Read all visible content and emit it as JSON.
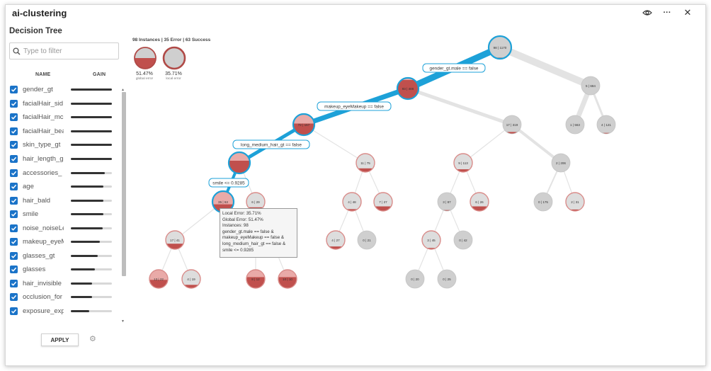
{
  "app": {
    "title": "ai-clustering"
  },
  "header": {
    "icons": [
      "eye-icon",
      "more-icon",
      "close-icon"
    ],
    "more_glyph": "···",
    "close_glyph": "✕"
  },
  "panel": {
    "title": "Decision Tree",
    "filter_placeholder": "Type to filter",
    "col_name": "NAME",
    "col_gain": "GAIN",
    "apply_label": "APPLY",
    "features": [
      {
        "name": "gender_gt",
        "gain": 1.0
      },
      {
        "name": "facialHair_sid",
        "gain": 1.0
      },
      {
        "name": "facialHair_mc",
        "gain": 1.0
      },
      {
        "name": "facialHair_bea",
        "gain": 1.0
      },
      {
        "name": "skin_type_gt",
        "gain": 1.0
      },
      {
        "name": "hair_length_g",
        "gain": 1.0
      },
      {
        "name": "accessories_",
        "gain": 0.82
      },
      {
        "name": "age",
        "gain": 0.8
      },
      {
        "name": "hair_bald",
        "gain": 0.8
      },
      {
        "name": "smile",
        "gain": 0.79
      },
      {
        "name": "noise_noiseLe",
        "gain": 0.78
      },
      {
        "name": "makeup_eyeM",
        "gain": 0.7
      },
      {
        "name": "glasses_gt",
        "gain": 0.65
      },
      {
        "name": "glasses",
        "gain": 0.58
      },
      {
        "name": "hair_invisible",
        "gain": 0.52
      },
      {
        "name": "occlusion_for",
        "gain": 0.52
      },
      {
        "name": "exposure_exp",
        "gain": 0.45
      }
    ]
  },
  "tree": {
    "summary": "98 Instances | 35 Error | 63 Success",
    "legend": [
      {
        "pct": "51.47%",
        "label": "global error"
      },
      {
        "pct": "35.71%",
        "label": "local error"
      }
    ],
    "colors": {
      "path": "#1da1d8",
      "error": "#c0504d",
      "node_gray": "#cfcfcf",
      "node_pink": "#e9aaa8"
    },
    "nodes": [
      {
        "id": "n0",
        "label": "98 | 1170",
        "fill": 0.05,
        "tone": "gray",
        "selected": true
      },
      {
        "id": "n1",
        "label": "93 | 486",
        "fill": 0.9,
        "tone": "pink",
        "selected": true
      },
      {
        "id": "n2",
        "label": "5 | 684",
        "fill": 0.0,
        "tone": "gray"
      },
      {
        "id": "n3",
        "label": "72 | 167",
        "fill": 0.55,
        "tone": "pink",
        "selected": true
      },
      {
        "id": "n4",
        "label": "17 | 319",
        "fill": 0.1,
        "tone": "gray"
      },
      {
        "id": "n5",
        "label": "1 | 563",
        "fill": 0.0,
        "tone": "gray"
      },
      {
        "id": "n6",
        "label": "4 | 121",
        "fill": 0.05,
        "tone": "gray"
      },
      {
        "id": "n7",
        "label": "",
        "fill": 0.6,
        "tone": "pink",
        "selected": true
      },
      {
        "id": "n8",
        "label": "11 | 75",
        "fill": 0.2,
        "tone": "pinklight"
      },
      {
        "id": "n9",
        "label": "9 | 113",
        "fill": 0.15,
        "tone": "pinklight"
      },
      {
        "id": "n10",
        "label": "2 | 206",
        "fill": 0.0,
        "tone": "gray"
      },
      {
        "id": "n11",
        "label": "35 | 63",
        "fill": 0.38,
        "tone": "pink",
        "selected": true
      },
      {
        "id": "n12",
        "label": "6 | 29",
        "fill": 0.2,
        "tone": "pinklight"
      },
      {
        "id": "n13",
        "label": "4 | 48",
        "fill": 0.1,
        "tone": "pinklight"
      },
      {
        "id": "n14",
        "label": "7 | 27",
        "fill": 0.25,
        "tone": "pinklight"
      },
      {
        "id": "n15",
        "label": "3 | 87",
        "fill": 0.05,
        "tone": "gray"
      },
      {
        "id": "n16",
        "label": "6 | 26",
        "fill": 0.25,
        "tone": "pinklight"
      },
      {
        "id": "n17",
        "label": "0 | 175",
        "fill": 0.0,
        "tone": "gray"
      },
      {
        "id": "n18",
        "label": "2 | 31",
        "fill": 0.08,
        "tone": "pinklight"
      },
      {
        "id": "n19",
        "label": "17 | 41",
        "fill": 0.3,
        "tone": "pinklight"
      },
      {
        "id": "n20",
        "label": "4 | 27",
        "fill": 0.15,
        "tone": "pinklight"
      },
      {
        "id": "n21",
        "label": "0 | 21",
        "fill": 0.0,
        "tone": "gray"
      },
      {
        "id": "n22",
        "label": "3 | 45",
        "fill": 0.07,
        "tone": "pinklight"
      },
      {
        "id": "n23",
        "label": "0 | 42",
        "fill": 0.0,
        "tone": "gray"
      },
      {
        "id": "n24",
        "label": "13 | 22",
        "fill": 0.45,
        "tone": "pink"
      },
      {
        "id": "n25",
        "label": "4 | 19",
        "fill": 0.18,
        "tone": "pinklight"
      },
      {
        "id": "n26",
        "label": "8 | 12",
        "fill": 0.6,
        "tone": "pink"
      },
      {
        "id": "n27",
        "label": "10 | 10",
        "fill": 0.6,
        "tone": "pink"
      },
      {
        "id": "n28",
        "label": "0 | 20",
        "fill": 0.0,
        "tone": "gray"
      },
      {
        "id": "n29",
        "label": "0 | 25",
        "fill": 0.0,
        "tone": "gray"
      }
    ],
    "edge_labels": [
      "gender_gt.male == false",
      "makeup_eyeMakeup == false",
      "long_medium_hair_gt == false",
      "smile <= 0.9285"
    ]
  },
  "tooltip": {
    "lines": [
      "Local Error: 35.71%",
      "Global Error: 51.47%",
      "Instances: 98",
      "gender_gt.male == false &",
      "makeup_eyeMakeup == false &",
      "long_medium_hair_gt == false &",
      "smile <= 0.9285"
    ]
  }
}
